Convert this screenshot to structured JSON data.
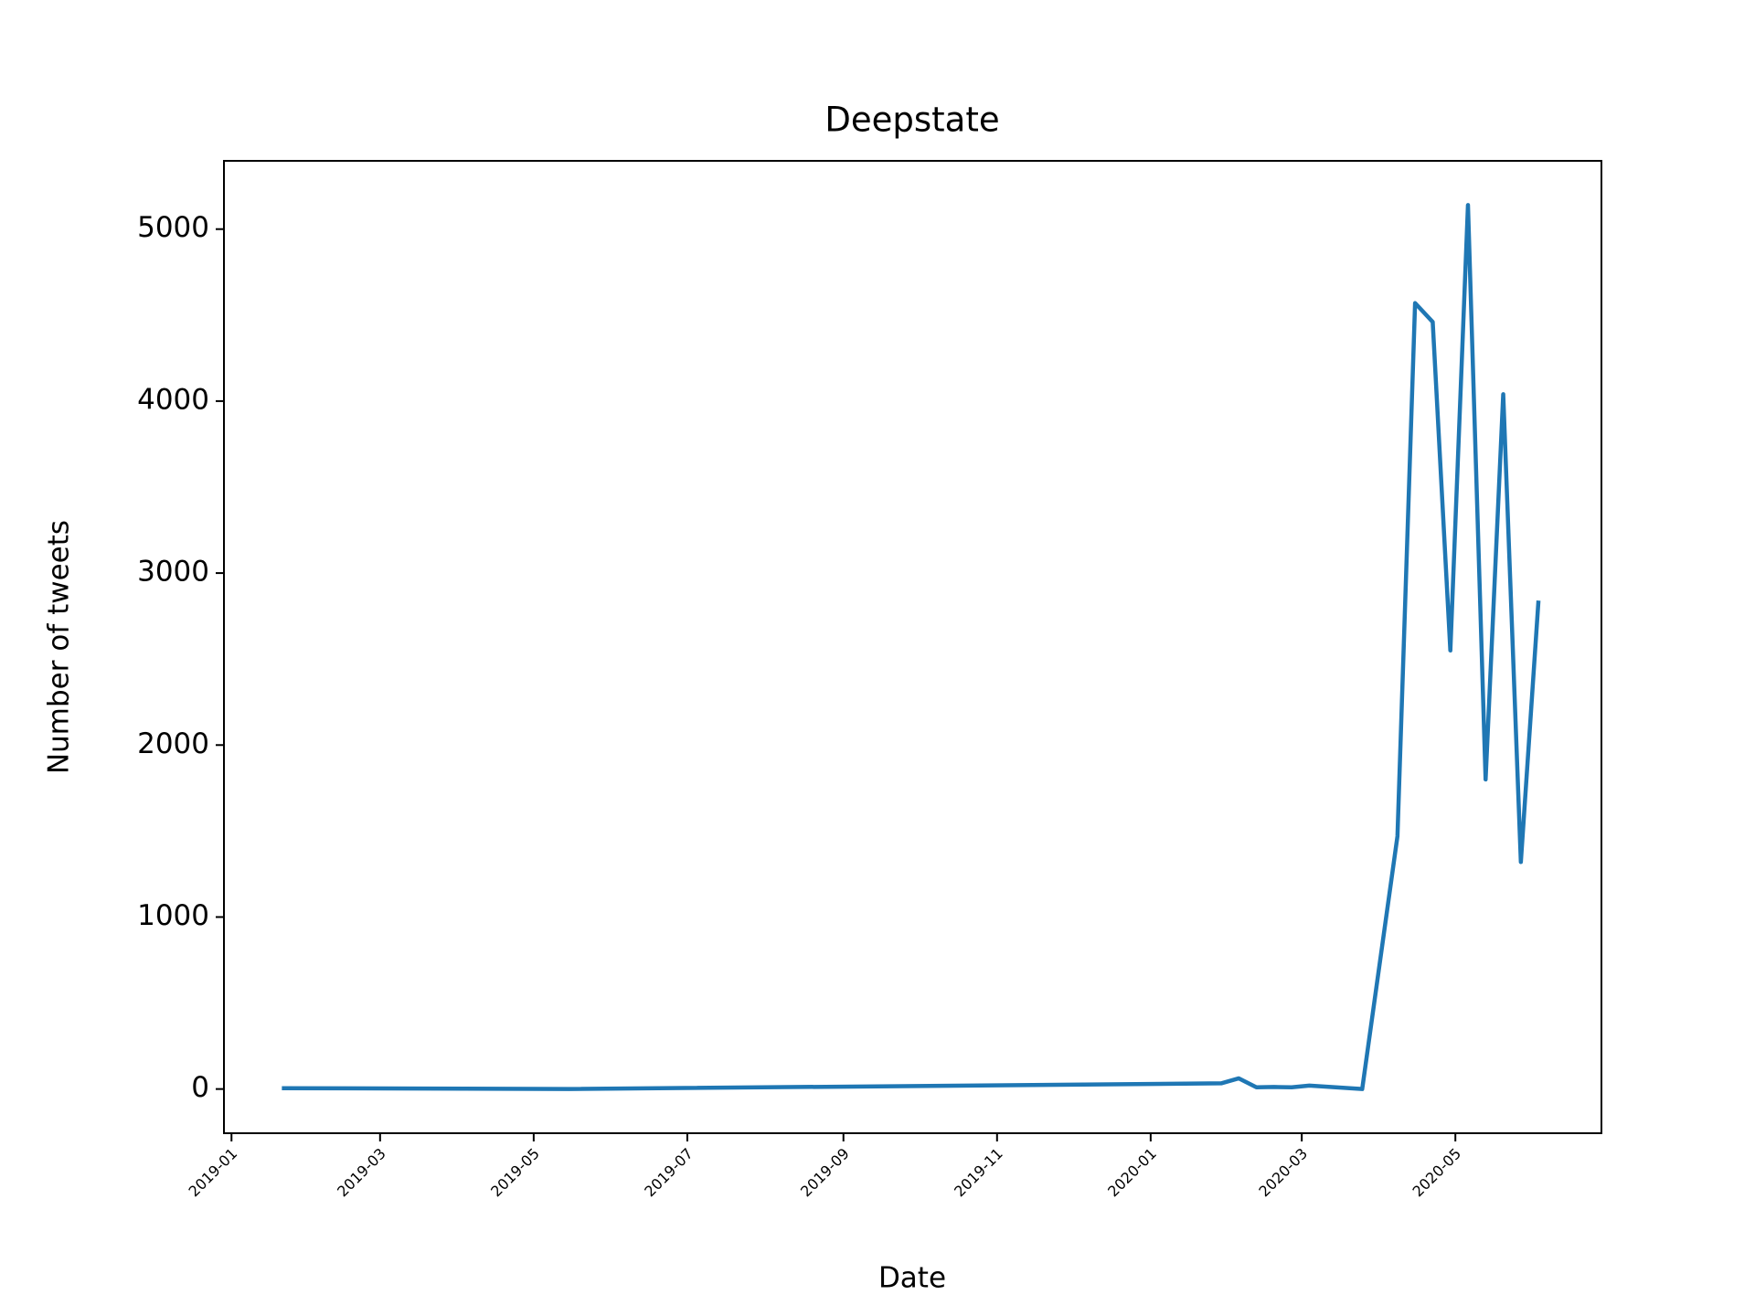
{
  "chart_data": {
    "type": "line",
    "title": "Deepstate",
    "x_label": "Date",
    "y_label": "Number of tweets",
    "x": [
      "2019-01-21",
      "2019-05-15",
      "2020-01-29",
      "2020-02-05",
      "2020-02-12",
      "2020-02-19",
      "2020-02-26",
      "2020-03-04",
      "2020-03-25",
      "2020-04-08",
      "2020-04-15",
      "2020-04-22",
      "2020-04-29",
      "2020-05-06",
      "2020-05-13",
      "2020-05-20",
      "2020-05-27",
      "2020-06-03"
    ],
    "values": [
      5,
      0,
      33,
      62,
      10,
      12,
      10,
      20,
      0,
      1470,
      4570,
      4460,
      2550,
      5140,
      1800,
      4040,
      1320,
      2840
    ],
    "color": "#1f77b4",
    "xlim": [
      "2018-12-29",
      "2020-06-28"
    ],
    "xticks": [
      {
        "value": "2019-01-01",
        "label": "2019-01"
      },
      {
        "value": "2019-03-01",
        "label": "2019-03"
      },
      {
        "value": "2019-05-01",
        "label": "2019-05"
      },
      {
        "value": "2019-07-01",
        "label": "2019-07"
      },
      {
        "value": "2019-09-01",
        "label": "2019-09"
      },
      {
        "value": "2019-11-01",
        "label": "2019-11"
      },
      {
        "value": "2020-01-01",
        "label": "2020-01"
      },
      {
        "value": "2020-03-01",
        "label": "2020-03"
      },
      {
        "value": "2020-05-01",
        "label": "2020-05"
      }
    ],
    "ylim": [
      -257,
      5397
    ],
    "yticks": [
      0,
      1000,
      2000,
      3000,
      4000,
      5000
    ],
    "grid": false
  }
}
